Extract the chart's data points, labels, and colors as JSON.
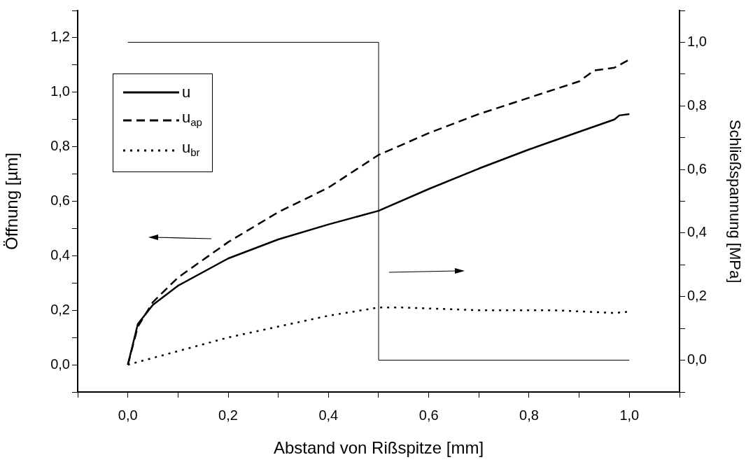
{
  "chart_data": {
    "type": "line",
    "xlabel": "Abstand von Rißspitze [mm]",
    "ylabel": "Öffnung [µm]",
    "y2label": "Schließspannung [MPa]",
    "xlim": [
      -0.1,
      1.1
    ],
    "xticks": [
      {
        "value": -0.1,
        "label": null
      },
      {
        "value": 0,
        "label": "0,0"
      },
      {
        "value": 0.1,
        "label": null
      },
      {
        "value": 0.2,
        "label": "0,2"
      },
      {
        "value": 0.3,
        "label": null
      },
      {
        "value": 0.4,
        "label": "0,4"
      },
      {
        "value": 0.5,
        "label": null
      },
      {
        "value": 0.6,
        "label": "0,6"
      },
      {
        "value": 0.7,
        "label": null
      },
      {
        "value": 0.8,
        "label": "0,8"
      },
      {
        "value": 0.9,
        "label": null
      },
      {
        "value": 1.0,
        "label": "1,0"
      },
      {
        "value": 1.1,
        "label": null
      }
    ],
    "ylim": [
      -0.1,
      1.3
    ],
    "yticks": [
      {
        "value": -0.1,
        "label": null
      },
      {
        "value": 0,
        "label": "0,0"
      },
      {
        "value": 0.1,
        "label": null
      },
      {
        "value": 0.2,
        "label": "0,2"
      },
      {
        "value": 0.3,
        "label": null
      },
      {
        "value": 0.4,
        "label": "0,4"
      },
      {
        "value": 0.5,
        "label": null
      },
      {
        "value": 0.6,
        "label": "0,6"
      },
      {
        "value": 0.7,
        "label": null
      },
      {
        "value": 0.8,
        "label": "0,8"
      },
      {
        "value": 0.9,
        "label": null
      },
      {
        "value": 1.0,
        "label": "1,0"
      },
      {
        "value": 1.1,
        "label": null
      },
      {
        "value": 1.2,
        "label": "1,2"
      },
      {
        "value": 1.3,
        "label": null
      }
    ],
    "y2lim": [
      -0.1,
      1.1
    ],
    "y2ticks": [
      {
        "value": -0.1,
        "label": null
      },
      {
        "value": 0,
        "label": "0,0"
      },
      {
        "value": 0.1,
        "label": null
      },
      {
        "value": 0.2,
        "label": "0,2"
      },
      {
        "value": 0.3,
        "label": null
      },
      {
        "value": 0.4,
        "label": "0,4"
      },
      {
        "value": 0.5,
        "label": null
      },
      {
        "value": 0.6,
        "label": "0,6"
      },
      {
        "value": 0.7,
        "label": null
      },
      {
        "value": 0.8,
        "label": "0,8"
      },
      {
        "value": 0.9,
        "label": null
      },
      {
        "value": 1.0,
        "label": "1,0"
      },
      {
        "value": 1.1,
        "label": null
      }
    ],
    "grid": false,
    "legend": "top left",
    "marker": "none",
    "series": [
      {
        "name": "u",
        "color": "#000000",
        "line_style": "solid",
        "x": [
          0,
          0.02,
          0.05,
          0.1,
          0.2,
          0.3,
          0.4,
          0.45,
          0.5,
          0.6,
          0.7,
          0.8,
          0.9,
          0.97,
          0.98,
          1.0
        ],
        "values": [
          0,
          0.15,
          0.22,
          0.29,
          0.39,
          0.46,
          0.515,
          0.54,
          0.565,
          0.645,
          0.72,
          0.79,
          0.855,
          0.9,
          0.915,
          0.92
        ]
      },
      {
        "name": "u$_{ap}$",
        "color": "#000000",
        "line_style": "dashed",
        "x": [
          0,
          0.02,
          0.05,
          0.1,
          0.2,
          0.3,
          0.4,
          0.5,
          0.6,
          0.7,
          0.8,
          0.9,
          0.93,
          0.97,
          1.0
        ],
        "values": [
          0,
          0.14,
          0.23,
          0.32,
          0.45,
          0.56,
          0.65,
          0.77,
          0.85,
          0.92,
          0.98,
          1.04,
          1.08,
          1.09,
          1.12
        ]
      },
      {
        "name": "u$_{br}$",
        "color": "#000000",
        "line_style": "dotted",
        "x": [
          0,
          0.1,
          0.2,
          0.3,
          0.4,
          0.5,
          0.55,
          0.7,
          0.85,
          0.97,
          1.0
        ],
        "values": [
          0,
          0.05,
          0.1,
          0.14,
          0.18,
          0.21,
          0.21,
          0.2,
          0.2,
          0.19,
          0.195
        ]
      },
      {
        "type": "step",
        "axis": "y2",
        "color": "#000000",
        "line_style": "solid",
        "x": [
          0,
          0.5,
          1.0
        ],
        "values": [
          1.0,
          0,
          0
        ]
      }
    ]
  }
}
